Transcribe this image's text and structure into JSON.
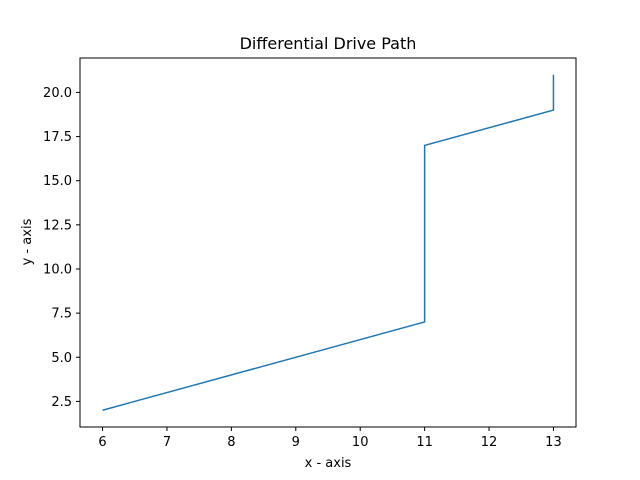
{
  "chart_data": {
    "type": "line",
    "title": "Differential Drive Path",
    "xlabel": "x - axis",
    "ylabel": "y - axis",
    "xlim": [
      5.65,
      13.35
    ],
    "ylim": [
      1.05,
      21.95
    ],
    "xticks": [
      6,
      7,
      8,
      9,
      10,
      11,
      12,
      13
    ],
    "xtick_labels": [
      "6",
      "7",
      "8",
      "9",
      "10",
      "11",
      "12",
      "13"
    ],
    "yticks": [
      2.5,
      5.0,
      7.5,
      10.0,
      12.5,
      15.0,
      17.5,
      20.0
    ],
    "ytick_labels": [
      "2.5",
      "5.0",
      "7.5",
      "10.0",
      "12.5",
      "15.0",
      "17.5",
      "20.0"
    ],
    "grid": false,
    "series": [
      {
        "color": "#1f77b4",
        "x": [
          6,
          11,
          11,
          13,
          13
        ],
        "y": [
          2,
          7,
          17,
          19,
          21
        ]
      }
    ]
  }
}
